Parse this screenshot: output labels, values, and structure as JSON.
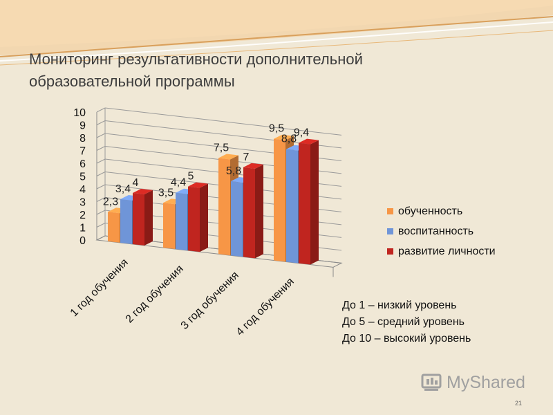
{
  "slide": {
    "title_line1": "Мониторинг результативности дополнительной",
    "title_line2": "образовательной программы",
    "notes": [
      "До 1 – низкий уровень",
      "До 5 – средний уровень",
      "До 10 – высокий уровень"
    ],
    "watermark": "MyShared",
    "page_number": "21"
  },
  "chart_data": {
    "type": "bar",
    "categories": [
      "1 год обучения",
      "2 год обучения",
      "3 год обучения",
      "4 год обучения"
    ],
    "series": [
      {
        "name": "обученность",
        "values": [
          2.3,
          3.5,
          7.5,
          9.5
        ],
        "labels": [
          "2,3",
          "3,5",
          "7,5",
          "9,5"
        ],
        "color": "#f79646"
      },
      {
        "name": "воспитанность",
        "values": [
          3.4,
          4.4,
          5.8,
          8.8
        ],
        "labels": [
          "3,4",
          "4,4",
          "5,8",
          "8,8"
        ],
        "color": "#6f95d8"
      },
      {
        "name": "развитие личности",
        "values": [
          4,
          5,
          7,
          9.4
        ],
        "labels": [
          "4",
          "5",
          "7",
          "9,4"
        ],
        "color": "#c0251f"
      }
    ],
    "ylim": [
      0,
      10
    ],
    "yticks": [
      "0",
      "1",
      "2",
      "3",
      "4",
      "5",
      "6",
      "7",
      "8",
      "9",
      "10"
    ],
    "grid": true,
    "legend_position": "right"
  }
}
